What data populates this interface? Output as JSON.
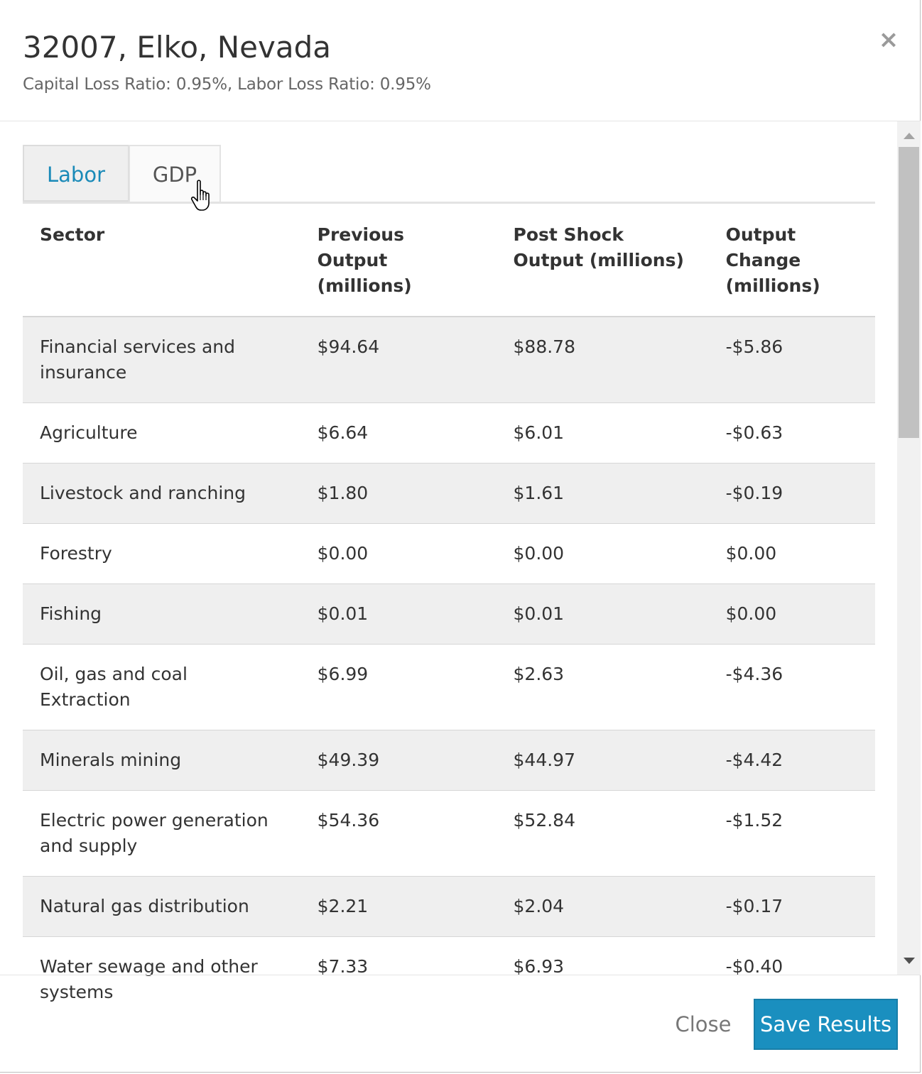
{
  "header": {
    "title": "32007, Elko, Nevada",
    "subtitle": "Capital Loss Ratio: 0.95%, Labor Loss Ratio: 0.95%",
    "close_glyph": "×"
  },
  "tabs": [
    {
      "label": "Labor",
      "active": true
    },
    {
      "label": "GDP",
      "active": false
    }
  ],
  "table": {
    "headers": [
      "Sector",
      "Previous Output (millions)",
      "Post Shock Output (millions)",
      "Output Change (millions)"
    ],
    "rows": [
      [
        "Financial services and insurance",
        "$94.64",
        "$88.78",
        "-$5.86"
      ],
      [
        "Agriculture",
        "$6.64",
        "$6.01",
        "-$0.63"
      ],
      [
        "Livestock and ranching",
        "$1.80",
        "$1.61",
        "-$0.19"
      ],
      [
        "Forestry",
        "$0.00",
        "$0.00",
        "$0.00"
      ],
      [
        "Fishing",
        "$0.01",
        "$0.01",
        "$0.00"
      ],
      [
        "Oil, gas and coal Extraction",
        "$6.99",
        "$2.63",
        "-$4.36"
      ],
      [
        "Minerals mining",
        "$49.39",
        "$44.97",
        "-$4.42"
      ],
      [
        "Electric power generation and supply",
        "$54.36",
        "$52.84",
        "-$1.52"
      ],
      [
        "Natural gas distribution",
        "$2.21",
        "$2.04",
        "-$0.17"
      ],
      [
        "Water sewage and other systems",
        "$7.33",
        "$6.93",
        "-$0.40"
      ]
    ]
  },
  "footer": {
    "close_label": "Close",
    "save_label": "Save Results"
  },
  "colors": {
    "accent": "#1a8fbf",
    "active_tab_text": "#1a8ab8",
    "striped_row": "#efefef"
  }
}
